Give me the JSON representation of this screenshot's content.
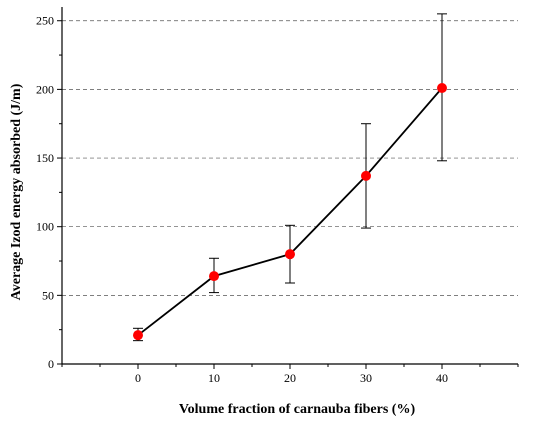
{
  "chart_data": {
    "type": "line",
    "xlabel": "Volume fraction of carnauba fibers (%)",
    "ylabel": "Average Izod energy absorbed (J/m)",
    "x": [
      0,
      10,
      20,
      30,
      40
    ],
    "series": [
      {
        "values": [
          21,
          64,
          80,
          137,
          201
        ],
        "error_low": [
          17,
          52,
          59,
          99,
          148
        ],
        "error_high": [
          26,
          77,
          101,
          175,
          255
        ]
      }
    ],
    "xlim": [
      -10,
      50
    ],
    "ylim": [
      0,
      260
    ],
    "xticks": [
      "0",
      "10",
      "20",
      "30",
      "40"
    ],
    "yticks": [
      "0",
      "50",
      "100",
      "150",
      "200",
      "250"
    ],
    "grid": "horizontal-dashed",
    "legend": "none",
    "colors": {
      "marker": "#ff0000",
      "line": "#000000"
    }
  }
}
